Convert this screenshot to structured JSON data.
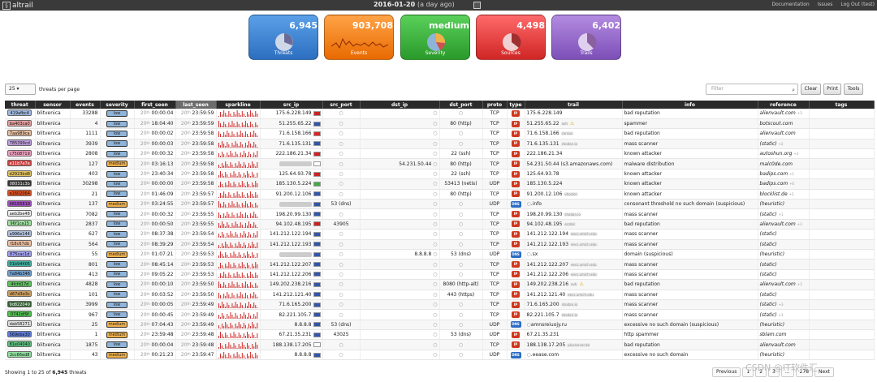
{
  "app": {
    "name": "altrail",
    "period": "2016-01-20",
    "ago": "(a day ago)",
    "links": [
      "Documentation",
      "Issues",
      "Log Out (test)"
    ]
  },
  "tiles": [
    {
      "value": "6,945",
      "label": "Threats",
      "color": "#2d6fc0"
    },
    {
      "value": "903,708",
      "label": "Events",
      "color": "#e86a00"
    },
    {
      "value": "medium",
      "label": "Severity",
      "color": "#2a9a2a"
    },
    {
      "value": "4,498",
      "label": "Sources",
      "color": "#d02525"
    },
    {
      "value": "6,402",
      "label": "Trails",
      "color": "#7d4fb8"
    }
  ],
  "toolbar": {
    "per_page": "25",
    "per_page_label": "threats per page",
    "filter_placeholder": "Filter",
    "clear": "Clear",
    "print": "Print",
    "tools": "Tools"
  },
  "columns": [
    "threat",
    "sensor",
    "events",
    "severity",
    "first_seen",
    "last_seen",
    "sparkline",
    "src_ip",
    "src_port",
    "dst_ip",
    "dst_port",
    "proto",
    "type",
    "trail",
    "info",
    "reference",
    "tags"
  ],
  "rows": [
    {
      "threat": "419afbc4",
      "tc": "#9fb8e0",
      "sensor": "blitvenica",
      "events": "33288",
      "sev": "low",
      "fs": "20",
      "fst": "00:00:04",
      "ls": "20",
      "lst": "23:59:59",
      "src": "175.6.228.149",
      "sp": "",
      "dip": "",
      "dp": "",
      "proto": "TCP",
      "type": "IP",
      "trail": "175.6.228.149",
      "tchip": "",
      "info": "bad reputation",
      "ref": "alienvault.com",
      "rp": "+3"
    },
    {
      "threat": "ba403ca0",
      "tc": "#e8a0a0",
      "sensor": "blitvenica",
      "events": "4",
      "sev": "low",
      "fs": "20",
      "fst": "18:04:40",
      "ls": "20",
      "lst": "23:59:59",
      "src": "51.255.65.22",
      "sp": "",
      "dip": "",
      "dp": "80 (http)",
      "proto": "TCP",
      "type": "IP",
      "trail": "51.255.65.22",
      "tchip": "ovh",
      "info": "spammer",
      "ref": "botscout.com",
      "rp": ""
    },
    {
      "threat": "7aa989ca",
      "tc": "#e8c0a0",
      "sensor": "blitvenica",
      "events": "1111",
      "sev": "low",
      "fs": "20",
      "fst": "00:00:02",
      "ls": "20",
      "lst": "23:59:58",
      "src": "71.6.158.166",
      "sp": "",
      "dip": "",
      "dp": "",
      "proto": "TCP",
      "type": "IP",
      "trail": "71.6.158.166",
      "tchip": "census",
      "info": "bad reputation",
      "ref": "alienvault.com",
      "rp": ""
    },
    {
      "threat": "785399cd",
      "tc": "#c0a0e0",
      "sensor": "blitvenica",
      "events": "3939",
      "sev": "low",
      "fs": "20",
      "fst": "00:00:03",
      "ls": "20",
      "lst": "23:59:58",
      "src": "71.6.135.131",
      "sp": "",
      "dip": "",
      "dp": "",
      "proto": "TCP",
      "type": "IP",
      "trail": "71.6.135.131",
      "tchip": "shodan.io",
      "info": "mass scanner",
      "ref": "(static)",
      "rp": "+2"
    },
    {
      "threat": "c7508719",
      "tc": "#f0a0c0",
      "sensor": "blitvenica",
      "events": "2808",
      "sev": "low",
      "fs": "20",
      "fst": "00:00:32",
      "ls": "20",
      "lst": "23:59:58",
      "src": "222.186.21.34",
      "sp": "",
      "dip": "",
      "dp": "22 (ssh)",
      "proto": "TCP",
      "type": "IP",
      "trail": "222.186.21.34",
      "tchip": "",
      "info": "known attacker",
      "ref": "autoshun.org",
      "rp": "+3"
    },
    {
      "threat": "e11b7e7e",
      "tc": "#d04040",
      "sensor": "blitvenica",
      "events": "127",
      "sev": "medium",
      "fs": "20",
      "fst": "03:16:13",
      "ls": "20",
      "lst": "23:59:58",
      "src": "",
      "sp": "",
      "dip": "54.231.50.44",
      "dp": "80 (http)",
      "proto": "TCP",
      "type": "IP",
      "trail": "54.231.50.44 (s3.amazonaws.com)",
      "tchip": "",
      "info": "malware distribution",
      "ref": "malc0de.com",
      "rp": ""
    },
    {
      "threat": "d2923bd8",
      "tc": "#e0c060",
      "sensor": "blitvenica",
      "events": "403",
      "sev": "low",
      "fs": "20",
      "fst": "23:40:34",
      "ls": "20",
      "lst": "23:59:58",
      "src": "125.64.93.78",
      "sp": "",
      "dip": "",
      "dp": "22 (ssh)",
      "proto": "TCP",
      "type": "IP",
      "trail": "125.64.93.78",
      "tchip": "",
      "info": "known attacker",
      "ref": "badips.com",
      "rp": "+1"
    },
    {
      "threat": "08031c3b",
      "tc": "#303030",
      "sensor": "blitvenica",
      "events": "30298",
      "sev": "low",
      "fs": "20",
      "fst": "00:00:00",
      "ls": "20",
      "lst": "23:59:58",
      "src": "185.130.5.224",
      "sp": "",
      "dip": "",
      "dp": "53413 (netis)",
      "proto": "UDP",
      "type": "IP",
      "trail": "185.130.5.224",
      "tchip": "",
      "info": "known attacker",
      "ref": "badips.com",
      "rp": "+6"
    },
    {
      "threat": "e1602064",
      "tc": "#e05020",
      "sensor": "blitvenica",
      "events": "21",
      "sev": "low",
      "fs": "20",
      "fst": "01:46:09",
      "ls": "20",
      "lst": "23:59:57",
      "src": "91.200.12.106",
      "sp": "",
      "dip": "",
      "dp": "80 (http)",
      "proto": "TCP",
      "type": "IP",
      "trail": "91.200.12.106",
      "tchip": "vhoster",
      "info": "known attacker",
      "ref": "blocklist.de",
      "rp": "+2"
    },
    {
      "threat": "48185819",
      "tc": "#a050c0",
      "sensor": "blitvenica",
      "events": "137",
      "sev": "medium",
      "fs": "20",
      "fst": "03:24:55",
      "ls": "20",
      "lst": "23:59:57",
      "src": "",
      "sp": "53 (dns)",
      "dip": "",
      "dp": "",
      "proto": "UDP",
      "type": "DNS",
      "trail": ".info",
      "tchip": "",
      "info": "consonant threshold no such domain (suspicious)",
      "ref": "(heuristic)",
      "rp": ""
    },
    {
      "threat": "aeb2be48",
      "tc": "#f0f0f0",
      "sensor": "blitvenica",
      "events": "7082",
      "sev": "low",
      "fs": "20",
      "fst": "00:00:32",
      "ls": "20",
      "lst": "23:59:55",
      "src": "198.20.99.130",
      "sp": "",
      "dip": "",
      "dp": "",
      "proto": "TCP",
      "type": "IP",
      "trail": "198.20.99.130",
      "tchip": "shodan.io",
      "info": "mass scanner",
      "ref": "(static)",
      "rp": "+1"
    },
    {
      "threat": "96f1ca15",
      "tc": "#a0e0a0",
      "sensor": "blitvenica",
      "events": "2837",
      "sev": "low",
      "fs": "20",
      "fst": "00:00:50",
      "ls": "20",
      "lst": "23:59:55",
      "src": "94.102.48.195",
      "sp": "43905",
      "dip": "",
      "dp": "",
      "proto": "TCP",
      "type": "IP",
      "trail": "94.102.48.195",
      "tchip": "ecatel",
      "info": "bad reputation",
      "ref": "alienvault.com",
      "rp": "+3"
    },
    {
      "threat": "a996e144",
      "tc": "#b0c0e0",
      "sensor": "blitvenica",
      "events": "627",
      "sev": "low",
      "fs": "20",
      "fst": "08:37:38",
      "ls": "20",
      "lst": "23:59:54",
      "src": "141.212.122.194",
      "sp": "",
      "dip": "",
      "dp": "",
      "proto": "TCP",
      "type": "IP",
      "trail": "141.212.122.194",
      "tchip": "eecs.umich.edu",
      "info": "mass scanner",
      "ref": "(static)",
      "rp": ""
    },
    {
      "threat": "f18c67db",
      "tc": "#f0c0a0",
      "sensor": "blitvenica",
      "events": "564",
      "sev": "low",
      "fs": "20",
      "fst": "08:39:29",
      "ls": "20",
      "lst": "23:59:54",
      "src": "141.212.122.193",
      "sp": "",
      "dip": "",
      "dp": "",
      "proto": "TCP",
      "type": "IP",
      "trail": "141.212.122.193",
      "tchip": "eecs.umich.edu",
      "info": "mass scanner",
      "ref": "(static)",
      "rp": ""
    },
    {
      "threat": "875cac1d",
      "tc": "#a0a0f0",
      "sensor": "blitvenica",
      "events": "55",
      "sev": "medium",
      "fs": "20",
      "fst": "01:07:21",
      "ls": "20",
      "lst": "23:59:53",
      "src": "",
      "sp": "",
      "dip": "8.8.8.8",
      "dp": "53 (dns)",
      "proto": "UDP",
      "type": "DNS",
      "trail": ".sx",
      "tchip": "",
      "info": "domain (suspicious)",
      "ref": "(heuristic)",
      "rp": ""
    },
    {
      "threat": "01b94405",
      "tc": "#40b0a0",
      "sensor": "blitvenica",
      "events": "801",
      "sev": "low",
      "fs": "20",
      "fst": "08:45:14",
      "ls": "20",
      "lst": "23:59:53",
      "src": "141.212.122.207",
      "sp": "",
      "dip": "",
      "dp": "",
      "proto": "TCP",
      "type": "IP",
      "trail": "141.212.122.207",
      "tchip": "eecs.umich.edu",
      "info": "mass scanner",
      "ref": "(static)",
      "rp": ""
    },
    {
      "threat": "7a84b346",
      "tc": "#70a0d0",
      "sensor": "blitvenica",
      "events": "413",
      "sev": "low",
      "fs": "20",
      "fst": "09:05:22",
      "ls": "20",
      "lst": "23:59:53",
      "src": "141.212.122.206",
      "sp": "",
      "dip": "",
      "dp": "",
      "proto": "TCP",
      "type": "IP",
      "trail": "141.212.122.206",
      "tchip": "eecs.umich.edu",
      "info": "mass scanner",
      "ref": "(static)",
      "rp": ""
    },
    {
      "threat": "4fcfd17d",
      "tc": "#60c060",
      "sensor": "blitvenica",
      "events": "4828",
      "sev": "low",
      "fs": "20",
      "fst": "00:00:10",
      "ls": "20",
      "lst": "23:59:50",
      "src": "149.202.238.216",
      "sp": "",
      "dip": "",
      "dp": "8080 (http-alt)",
      "proto": "TCP",
      "type": "IP",
      "trail": "149.202.238.216",
      "tchip": "ovh",
      "info": "bad reputation",
      "ref": "alienvault.com",
      "rp": "+3"
    },
    {
      "threat": "d67d3e3c",
      "tc": "#d0a060",
      "sensor": "blitvenica",
      "events": "101",
      "sev": "low",
      "fs": "20",
      "fst": "00:03:52",
      "ls": "20",
      "lst": "23:59:50",
      "src": "141.212.121.40",
      "sp": "",
      "dip": "",
      "dp": "443 (https)",
      "proto": "TCP",
      "type": "IP",
      "trail": "141.212.121.40",
      "tchip": "eecs.umich.edu",
      "info": "mass scanner",
      "ref": "(static)",
      "rp": ""
    },
    {
      "threat": "9d822049",
      "tc": "#306030",
      "sensor": "blitvenica",
      "events": "3999",
      "sev": "low",
      "fs": "20",
      "fst": "00:00:05",
      "ls": "20",
      "lst": "23:59:49",
      "src": "71.6.165.200",
      "sp": "",
      "dip": "",
      "dp": "",
      "proto": "TCP",
      "type": "IP",
      "trail": "71.6.165.200",
      "tchip": "shodan.io",
      "info": "mass scanner",
      "ref": "(static)",
      "rp": "+3"
    },
    {
      "threat": "0742df9f",
      "tc": "#50c050",
      "sensor": "blitvenica",
      "events": "967",
      "sev": "low",
      "fs": "20",
      "fst": "00:00:45",
      "ls": "20",
      "lst": "23:59:49",
      "src": "82.221.105.7",
      "sp": "",
      "dip": "",
      "dp": "",
      "proto": "TCP",
      "type": "IP",
      "trail": "82.221.105.7",
      "tchip": "shodan.io",
      "info": "mass scanner",
      "ref": "(static)",
      "rp": "+3"
    },
    {
      "threat": "dab58271",
      "tc": "#e0e0e0",
      "sensor": "blitvenica",
      "events": "25",
      "sev": "medium",
      "fs": "20",
      "fst": "07:04:43",
      "ls": "20",
      "lst": "23:59:49",
      "src": "8.8.8.8",
      "sp": "53 (dns)",
      "dip": "",
      "dp": "",
      "proto": "UDP",
      "type": "DNS",
      "trail": "amnsreiuojy.ru",
      "tchip": "",
      "info": "excessive no such domain (suspicious)",
      "ref": "(heuristic)",
      "rp": ""
    },
    {
      "threat": "569eba30",
      "tc": "#6080e0",
      "sensor": "blitvenica",
      "events": "1",
      "sev": "medium",
      "fs": "20",
      "fst": "23:59:48",
      "ls": "20",
      "lst": "23:59:48",
      "src": "67.21.35.231",
      "sp": "43025",
      "dip": "",
      "dp": "53 (dns)",
      "proto": "UDP",
      "type": "IP",
      "trail": "67.21.35.231",
      "tchip": "",
      "info": "http spammer",
      "ref": "sblam.com",
      "rp": ""
    },
    {
      "threat": "81e04040",
      "tc": "#60c080",
      "sensor": "blitvenica",
      "events": "1875",
      "sev": "low",
      "fs": "20",
      "fst": "00:00:04",
      "ls": "20",
      "lst": "23:59:48",
      "src": "188.138.17.205",
      "sp": "",
      "dip": "",
      "dp": "",
      "proto": "TCP",
      "type": "IP",
      "trail": "188.138.17.205",
      "tchip": "plusserver.de",
      "info": "bad reputation",
      "ref": "alienvault.com",
      "rp": ""
    },
    {
      "threat": "2cc66ed8",
      "tc": "#90e0a0",
      "sensor": "blitvenica",
      "events": "43",
      "sev": "medium",
      "fs": "20",
      "fst": "00:21:23",
      "ls": "20",
      "lst": "23:59:47",
      "src": "8.8.8.8",
      "sp": "",
      "dip": "",
      "dp": "",
      "proto": "UDP",
      "type": "DNS",
      "trail": ".eease.com",
      "tchip": "",
      "info": "excessive no such domain",
      "ref": "(heuristic)",
      "rp": ""
    }
  ],
  "footer": {
    "prefix": "Showing 1 to 25 of",
    "count": "6,945",
    "suffix": "threats"
  },
  "pager": {
    "prev": "Previous",
    "pages": [
      "1",
      "2",
      "3",
      "...",
      "278"
    ],
    "next": "Next"
  },
  "watermark": "CSDN @IT软件汇"
}
